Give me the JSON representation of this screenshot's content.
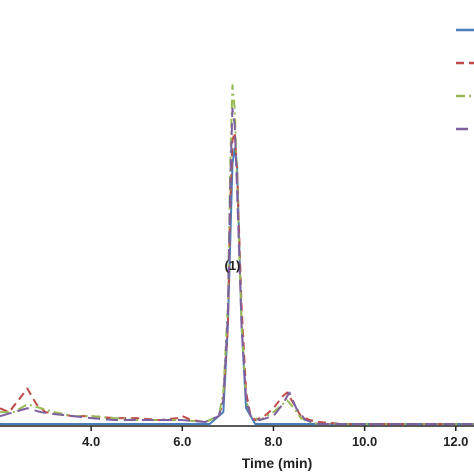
{
  "chart_data": {
    "type": "line",
    "xlabel": "Time (min)",
    "ylabel": "",
    "xlim": [
      2.0,
      12.4
    ],
    "ylim": [
      0,
      1.0
    ],
    "x_ticks": [
      4.0,
      6.0,
      8.0,
      10.0,
      12.0
    ],
    "x_tick_labels": [
      "4.0",
      "6.0",
      "8.0",
      "10.0",
      "12.0"
    ],
    "grid": false,
    "legend": "top-right",
    "annotations": [
      {
        "text": "(1)",
        "x": 7.1,
        "y": 0.88
      }
    ],
    "series": [
      {
        "color": "#4a7ebb",
        "dash": "solid",
        "x": [
          2.0,
          3.0,
          4.0,
          5.0,
          6.0,
          6.6,
          6.9,
          7.0,
          7.1,
          7.15,
          7.2,
          7.3,
          7.4,
          7.6,
          8.0,
          9.0,
          10.0,
          11.0,
          12.4
        ],
        "y": [
          0.0,
          0.0,
          0.0,
          0.0,
          0.0,
          0.0,
          0.03,
          0.25,
          0.66,
          0.7,
          0.66,
          0.25,
          0.04,
          0.0,
          0.0,
          0.0,
          0.0,
          0.0,
          0.0
        ]
      },
      {
        "color": "#be4b48",
        "dash": "dashed",
        "x": [
          2.0,
          2.2,
          2.4,
          2.6,
          2.8,
          3.0,
          3.3,
          3.6,
          4.0,
          4.5,
          5.0,
          5.5,
          5.9,
          6.0,
          6.2,
          6.5,
          6.8,
          6.9,
          7.0,
          7.05,
          7.1,
          7.15,
          7.2,
          7.3,
          7.4,
          7.5,
          7.6,
          7.8,
          8.0,
          8.2,
          8.3,
          8.45,
          8.6,
          8.8,
          9.0,
          9.5,
          10.0,
          11.0,
          12.4
        ],
        "y": [
          0.04,
          0.03,
          0.06,
          0.09,
          0.05,
          0.03,
          0.025,
          0.02,
          0.02,
          0.015,
          0.015,
          0.01,
          0.015,
          0.02,
          0.01,
          0.005,
          0.02,
          0.06,
          0.25,
          0.55,
          0.72,
          0.74,
          0.65,
          0.3,
          0.08,
          0.02,
          0.01,
          0.02,
          0.04,
          0.07,
          0.08,
          0.05,
          0.02,
          0.01,
          0.005,
          0.0,
          0.0,
          0.0,
          0.0
        ]
      },
      {
        "color": "#98b954",
        "dash": "dashdot",
        "x": [
          2.0,
          2.3,
          2.6,
          2.9,
          3.2,
          3.6,
          4.0,
          4.5,
          5.0,
          5.5,
          6.0,
          6.5,
          6.8,
          6.9,
          7.0,
          7.05,
          7.1,
          7.15,
          7.2,
          7.3,
          7.4,
          7.5,
          7.7,
          8.0,
          8.2,
          8.3,
          8.45,
          8.6,
          8.8,
          9.0,
          9.5,
          10.0,
          11.0,
          12.4
        ],
        "y": [
          0.03,
          0.03,
          0.05,
          0.04,
          0.03,
          0.02,
          0.02,
          0.015,
          0.01,
          0.01,
          0.01,
          0.005,
          0.02,
          0.08,
          0.3,
          0.65,
          0.86,
          0.8,
          0.62,
          0.26,
          0.06,
          0.02,
          0.01,
          0.03,
          0.05,
          0.06,
          0.04,
          0.015,
          0.005,
          0.0,
          0.0,
          0.0,
          0.0,
          0.0
        ]
      },
      {
        "color": "#7d60a0",
        "dash": "longdash",
        "x": [
          2.0,
          2.3,
          2.6,
          2.9,
          3.2,
          3.6,
          4.0,
          4.5,
          5.0,
          5.5,
          6.0,
          6.5,
          6.8,
          6.9,
          7.0,
          7.05,
          7.1,
          7.15,
          7.2,
          7.3,
          7.4,
          7.5,
          7.7,
          8.0,
          8.2,
          8.35,
          8.5,
          8.7,
          9.0,
          9.5,
          10.0,
          11.0,
          12.4
        ],
        "y": [
          0.02,
          0.03,
          0.04,
          0.03,
          0.025,
          0.02,
          0.015,
          0.01,
          0.01,
          0.01,
          0.01,
          0.005,
          0.02,
          0.06,
          0.28,
          0.6,
          0.8,
          0.76,
          0.6,
          0.25,
          0.06,
          0.02,
          0.01,
          0.02,
          0.05,
          0.08,
          0.04,
          0.01,
          0.0,
          0.0,
          0.0,
          0.0,
          0.0
        ]
      }
    ]
  }
}
